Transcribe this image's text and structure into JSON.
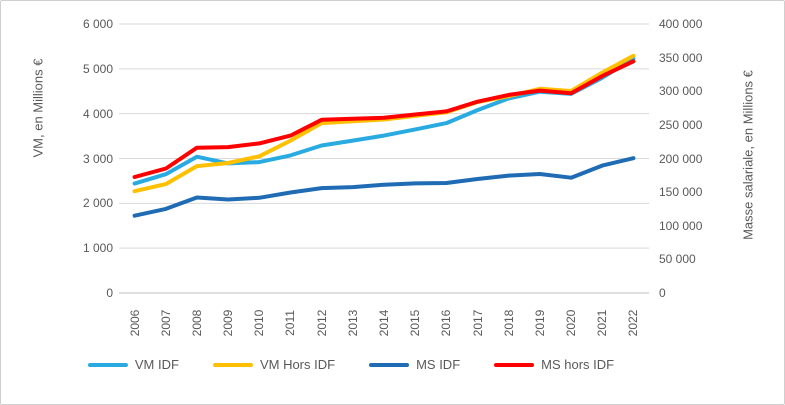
{
  "chart_data": {
    "type": "line",
    "title": "",
    "x": [
      "2006",
      "2007",
      "2008",
      "2009",
      "2010",
      "2011",
      "2012",
      "2013",
      "2014",
      "2015",
      "2016",
      "2017",
      "2018",
      "2019",
      "2020",
      "2021",
      "2022"
    ],
    "left_axis": {
      "title": "VM, en Millions €",
      "min": 0,
      "max": 6000,
      "ticks": [
        "0",
        "1 000",
        "2 000",
        "3 000",
        "4 000",
        "5 000",
        "6 000"
      ]
    },
    "right_axis": {
      "title": "Masse salariale, en Millions €",
      "min": 0,
      "max": 400000,
      "ticks": [
        "0",
        "50 000",
        "100 000",
        "150 000",
        "200 000",
        "250 000",
        "300 000",
        "350 000",
        "400 000"
      ]
    },
    "grid": true,
    "gridline_color": "#d9d9d9",
    "axisline_color": "#bfbfbf",
    "text_color": "#595959",
    "legend_position": "bottom",
    "series": [
      {
        "name": "VM IDF",
        "axis": "left",
        "color": "#29ABE2",
        "values": [
          2440,
          2650,
          3040,
          2890,
          2920,
          3070,
          3290,
          3400,
          3510,
          3650,
          3790,
          4080,
          4340,
          4490,
          4440,
          4800,
          5230
        ]
      },
      {
        "name": "VM Hors IDF",
        "axis": "left",
        "color": "#FFC000",
        "values": [
          2270,
          2430,
          2830,
          2900,
          3050,
          3400,
          3790,
          3830,
          3870,
          3950,
          4030,
          4260,
          4390,
          4555,
          4505,
          4915,
          5290
        ]
      },
      {
        "name": "MS IDF",
        "axis": "right",
        "color": "#1F6CB4",
        "values": [
          115000,
          125000,
          142000,
          139000,
          141500,
          149500,
          156000,
          157500,
          161000,
          163000,
          163500,
          169500,
          174500,
          177000,
          171500,
          189500,
          200500
        ]
      },
      {
        "name": "MS hors IDF",
        "axis": "right",
        "color": "#FF0000",
        "values": [
          172500,
          185000,
          216000,
          217000,
          222500,
          234000,
          257500,
          259000,
          260500,
          265500,
          270000,
          284500,
          294500,
          301000,
          297000,
          322500,
          344500
        ]
      }
    ]
  }
}
